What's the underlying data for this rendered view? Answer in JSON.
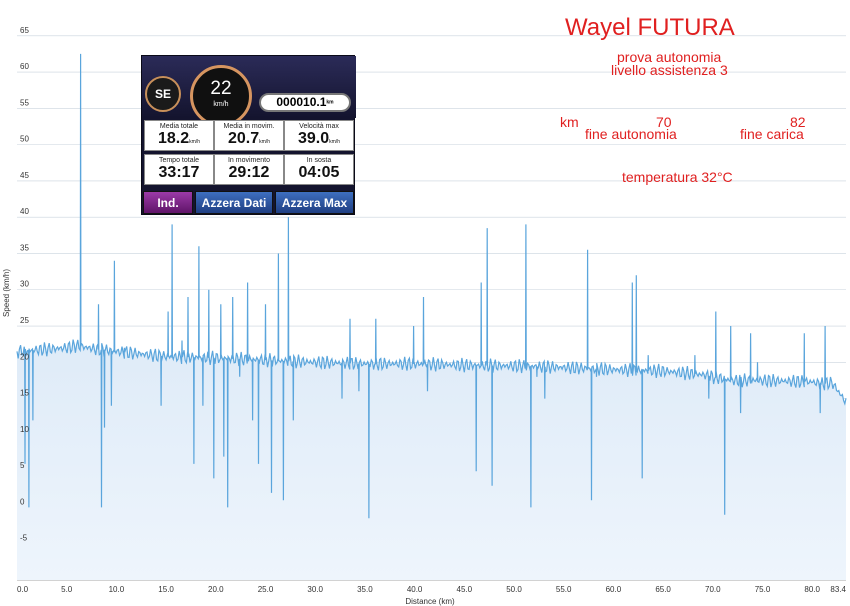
{
  "title": "Wayel FUTURA",
  "subtitle_line1": "prova autonomia",
  "subtitle_line2": "livello assistenza 3",
  "km_label": "km",
  "km_fine_autonomia": "70",
  "km_fine_carica": "82",
  "fine_autonomia_label": "fine autonomia",
  "fine_carica_label": "fine carica",
  "temperatura": "temperatura 32°C",
  "colors": {
    "line": "#5aa5dc",
    "fill_top": "#ccdff3",
    "fill_bottom": "#eef5fc",
    "annotation_red": "#e02020",
    "grid": "#c9d3dd"
  },
  "gps": {
    "heading": "SE",
    "speed": "22",
    "speed_unit": "km/h",
    "odometer": "000010.1",
    "odometer_unit": "km",
    "cells": [
      {
        "label": "Media totale",
        "value": "18.2",
        "unit": "km/h"
      },
      {
        "label": "Media in movim.",
        "value": "20.7",
        "unit": "km/h"
      },
      {
        "label": "Velocità max",
        "value": "39.0",
        "unit": "km/h"
      },
      {
        "label": "Tempo totale",
        "value": "33:17",
        "unit": ""
      },
      {
        "label": "In movimento",
        "value": "29:12",
        "unit": ""
      },
      {
        "label": "In sosta",
        "value": "04:05",
        "unit": ""
      }
    ],
    "buttons": [
      "Ind.",
      "Azzera Dati",
      "Azzera Max"
    ]
  },
  "chart_data": {
    "type": "area",
    "xlabel": "Distance (km)",
    "ylabel": "Speed (km/h)",
    "xlim": [
      0,
      83.4
    ],
    "ylim": [
      -10,
      68
    ],
    "x_ticks": [
      "0.0",
      "5.0",
      "10.0",
      "15.0",
      "20.0",
      "25.0",
      "30.0",
      "35.0",
      "40.0",
      "45.0",
      "50.0",
      "55.0",
      "60.0",
      "65.0",
      "70.0",
      "75.0",
      "80.0",
      "83.4"
    ],
    "y_ticks": [
      "65",
      "60",
      "55",
      "50",
      "45",
      "40",
      "35",
      "30",
      "25",
      "20",
      "15",
      "10",
      "5",
      "0",
      "-5"
    ],
    "grid": true,
    "baseline": [
      [
        0,
        21.5
      ],
      [
        5,
        22
      ],
      [
        6,
        22.3
      ],
      [
        8,
        21.8
      ],
      [
        10,
        21.5
      ],
      [
        15,
        20.8
      ],
      [
        20,
        20.6
      ],
      [
        25,
        20.3
      ],
      [
        30,
        20.0
      ],
      [
        35,
        19.8
      ],
      [
        40,
        19.8
      ],
      [
        45,
        19.6
      ],
      [
        50,
        19.5
      ],
      [
        55,
        19.3
      ],
      [
        60,
        19.0
      ],
      [
        65,
        18.8
      ],
      [
        69,
        18.3
      ],
      [
        70,
        18.0
      ],
      [
        72,
        17.5
      ],
      [
        75,
        17.5
      ],
      [
        80,
        17.3
      ],
      [
        81,
        17.0
      ],
      [
        82,
        17.2
      ],
      [
        83.4,
        14.5
      ]
    ],
    "spikes": [
      [
        0.8,
        6
      ],
      [
        1.2,
        0
      ],
      [
        1.6,
        12
      ],
      [
        6.4,
        62.5
      ],
      [
        8.2,
        28
      ],
      [
        8.8,
        11
      ],
      [
        8.5,
        0
      ],
      [
        9.5,
        14
      ],
      [
        9.8,
        34
      ],
      [
        10.8,
        22
      ],
      [
        14.5,
        14
      ],
      [
        15.2,
        27
      ],
      [
        15.6,
        39
      ],
      [
        16.6,
        23
      ],
      [
        17.2,
        29
      ],
      [
        17.8,
        6
      ],
      [
        18.3,
        36
      ],
      [
        18.7,
        14
      ],
      [
        19.3,
        30
      ],
      [
        19.8,
        4
      ],
      [
        20.5,
        28
      ],
      [
        20.8,
        7
      ],
      [
        21.2,
        0
      ],
      [
        21.7,
        29
      ],
      [
        22.4,
        18
      ],
      [
        23.2,
        31
      ],
      [
        23.7,
        12
      ],
      [
        24.3,
        6
      ],
      [
        25.0,
        28
      ],
      [
        25.6,
        2
      ],
      [
        26.3,
        35
      ],
      [
        26.8,
        1
      ],
      [
        27.3,
        40
      ],
      [
        27.8,
        12
      ],
      [
        32.7,
        15
      ],
      [
        33.5,
        26
      ],
      [
        34.4,
        16
      ],
      [
        35.4,
        -1.5
      ],
      [
        36.1,
        26
      ],
      [
        39.9,
        25
      ],
      [
        40.9,
        29
      ],
      [
        41.3,
        16
      ],
      [
        46.2,
        5
      ],
      [
        46.7,
        31
      ],
      [
        47.3,
        38.5
      ],
      [
        47.8,
        3
      ],
      [
        51.2,
        39
      ],
      [
        51.7,
        0
      ],
      [
        52.3,
        18
      ],
      [
        53.1,
        15
      ],
      [
        57.4,
        35.5
      ],
      [
        57.8,
        1
      ],
      [
        58.3,
        18
      ],
      [
        61.9,
        31
      ],
      [
        62.3,
        32
      ],
      [
        62.9,
        4
      ],
      [
        63.5,
        21
      ],
      [
        68.2,
        21
      ],
      [
        69.6,
        15
      ],
      [
        70.3,
        27
      ],
      [
        71.2,
        -1
      ],
      [
        71.8,
        25
      ],
      [
        72.8,
        13
      ],
      [
        73.8,
        24
      ],
      [
        74.5,
        20
      ],
      [
        79.2,
        24
      ],
      [
        80.8,
        13
      ],
      [
        81.3,
        25
      ]
    ]
  }
}
